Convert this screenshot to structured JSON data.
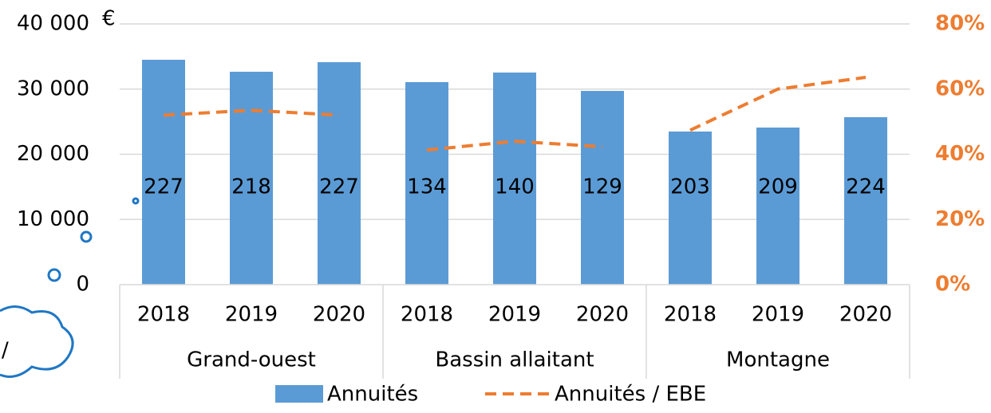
{
  "chart_data": {
    "type": "bar_line",
    "unit": "€",
    "groups": [
      "Grand-ouest",
      "Bassin allaitant",
      "Montagne"
    ],
    "categories": [
      "2018",
      "2019",
      "2020",
      "2018",
      "2019",
      "2020",
      "2018",
      "2019",
      "2020"
    ],
    "series": [
      {
        "name": "Annuités",
        "type": "bar",
        "color": "#5b9bd5",
        "values": [
          34500,
          32660,
          34130,
          31070,
          32540,
          29720,
          23490,
          24100,
          25690
        ]
      },
      {
        "name": "Annuités / EBE",
        "type": "line",
        "axis": "y2",
        "color": "#ed7d31",
        "dashed": true,
        "values": [
          52,
          53.5,
          52,
          41.3,
          44,
          42.3,
          47.4,
          60,
          63.6
        ]
      }
    ],
    "data_labels": [
      227,
      218,
      227,
      134,
      140,
      129,
      203,
      209,
      224
    ],
    "ylim": [
      0,
      40000
    ],
    "yticks": [
      0,
      {
        "value": 10000,
        "label": "10 000"
      },
      {
        "value": 20000,
        "label": "20 000"
      },
      {
        "value": 30000,
        "label": "30 000"
      },
      {
        "value": 40000,
        "label": "40 000"
      }
    ],
    "y2lim": [
      0,
      80
    ],
    "y2ticks": [
      {
        "value": 0,
        "label": "0%"
      },
      {
        "value": 20,
        "label": "20%"
      },
      {
        "value": 40,
        "label": "40%"
      },
      {
        "value": 60,
        "label": "60%"
      },
      {
        "value": 80,
        "label": "80%"
      }
    ],
    "grid": true,
    "legend": "bottom",
    "overlay_text": "/"
  }
}
